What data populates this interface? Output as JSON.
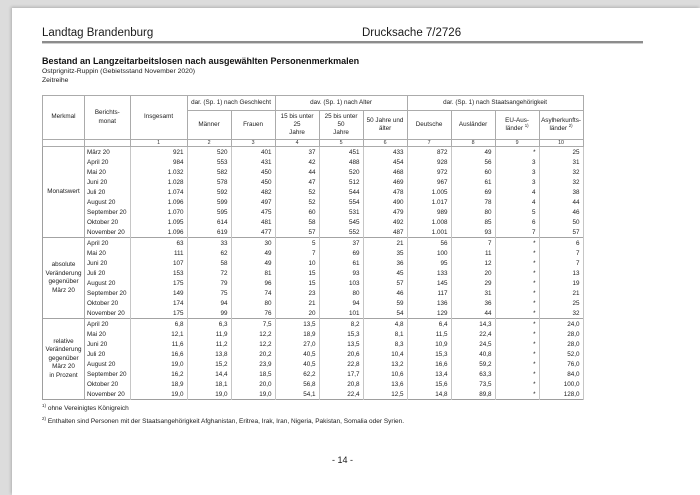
{
  "document": {
    "header": {
      "left": "Landtag Brandenburg",
      "right": "Drucksache 7/2726"
    },
    "title": "Bestand an Langzeitarbeitslosen nach ausgewählten Personenmerkmalen",
    "region_line": "Ostprignitz-Ruppin (Gebietsstand November 2020)",
    "series_line": "Zeitreihe",
    "footnotes": [
      {
        "marker": "1)",
        "text": "ohne Vereinigtes Königreich"
      },
      {
        "marker": "2)",
        "text": "Enthalten sind Personen mit der Staatsangehörigkeit Afghanistan, Eritrea, Irak, Iran, Nigeria, Pakistan, Somalia oder Syrien."
      }
    ],
    "page_number": "- 14 -"
  },
  "colors": {
    "canvas_bg": "#dcdcdc",
    "page_bg": "#ffffff",
    "table_border": "#ababab",
    "text": "#1a1a1a"
  },
  "table": {
    "corner": {
      "merkmal": "Merkmal",
      "berichtsmonat": "Berichts-\nmonat",
      "insgesamt": "Insgesamt"
    },
    "groups": [
      {
        "label": "dar. (Sp. 1) nach Geschlecht",
        "span": 2
      },
      {
        "label": "dav. (Sp. 1) nach Alter",
        "span": 3
      },
      {
        "label": "dar. (Sp. 1) nach Staatsangehörigkeit",
        "span": 4
      }
    ],
    "subheaders": [
      {
        "label": "Männer"
      },
      {
        "label": "Frauen"
      },
      {
        "label": "15 bis unter 25\nJahre"
      },
      {
        "label": "25 bis unter 50\nJahre"
      },
      {
        "label": "50 Jahre und\nälter"
      },
      {
        "label": "Deutsche"
      },
      {
        "label": "Ausländer"
      },
      {
        "label": "EU-Aus-\nländer ",
        "sup": "1)"
      },
      {
        "label": "Asylherkunfts-\nländer ",
        "sup": "2)"
      }
    ],
    "col_numbers": [
      "1",
      "2",
      "3",
      "4",
      "5",
      "6",
      "7",
      "8",
      "9",
      "10"
    ],
    "sections": [
      {
        "label": "Monatswert",
        "rows": [
          [
            "März 20",
            "921",
            "520",
            "401",
            "37",
            "451",
            "433",
            "872",
            "49",
            "*",
            "25"
          ],
          [
            "April 20",
            "984",
            "553",
            "431",
            "42",
            "488",
            "454",
            "928",
            "56",
            "3",
            "31"
          ],
          [
            "Mai 20",
            "1.032",
            "582",
            "450",
            "44",
            "520",
            "468",
            "972",
            "60",
            "3",
            "32"
          ],
          [
            "Juni 20",
            "1.028",
            "578",
            "450",
            "47",
            "512",
            "469",
            "967",
            "61",
            "3",
            "32"
          ],
          [
            "Juli 20",
            "1.074",
            "592",
            "482",
            "52",
            "544",
            "478",
            "1.005",
            "69",
            "4",
            "38"
          ],
          [
            "August 20",
            "1.096",
            "599",
            "497",
            "52",
            "554",
            "490",
            "1.017",
            "78",
            "4",
            "44"
          ],
          [
            "September 20",
            "1.070",
            "595",
            "475",
            "60",
            "531",
            "479",
            "989",
            "80",
            "5",
            "46"
          ],
          [
            "Oktober 20",
            "1.095",
            "614",
            "481",
            "58",
            "545",
            "492",
            "1.008",
            "85",
            "6",
            "50"
          ],
          [
            "November 20",
            "1.096",
            "619",
            "477",
            "57",
            "552",
            "487",
            "1.001",
            "93",
            "7",
            "57"
          ]
        ]
      },
      {
        "label": "absolute\nVeränderung\ngegenüber\nMärz 20",
        "rows": [
          [
            "April 20",
            "63",
            "33",
            "30",
            "5",
            "37",
            "21",
            "56",
            "7",
            "*",
            "6"
          ],
          [
            "Mai 20",
            "111",
            "62",
            "49",
            "7",
            "69",
            "35",
            "100",
            "11",
            "*",
            "7"
          ],
          [
            "Juni 20",
            "107",
            "58",
            "49",
            "10",
            "61",
            "36",
            "95",
            "12",
            "*",
            "7"
          ],
          [
            "Juli 20",
            "153",
            "72",
            "81",
            "15",
            "93",
            "45",
            "133",
            "20",
            "*",
            "13"
          ],
          [
            "August 20",
            "175",
            "79",
            "96",
            "15",
            "103",
            "57",
            "145",
            "29",
            "*",
            "19"
          ],
          [
            "September 20",
            "149",
            "75",
            "74",
            "23",
            "80",
            "46",
            "117",
            "31",
            "*",
            "21"
          ],
          [
            "Oktober 20",
            "174",
            "94",
            "80",
            "21",
            "94",
            "59",
            "136",
            "36",
            "*",
            "25"
          ],
          [
            "November 20",
            "175",
            "99",
            "76",
            "20",
            "101",
            "54",
            "129",
            "44",
            "*",
            "32"
          ]
        ]
      },
      {
        "label": "relative\nVeränderung\ngegenüber\nMärz 20\nin Prozent",
        "rows": [
          [
            "April 20",
            "6,8",
            "6,3",
            "7,5",
            "13,5",
            "8,2",
            "4,8",
            "6,4",
            "14,3",
            "*",
            "24,0"
          ],
          [
            "Mai 20",
            "12,1",
            "11,9",
            "12,2",
            "18,9",
            "15,3",
            "8,1",
            "11,5",
            "22,4",
            "*",
            "28,0"
          ],
          [
            "Juni 20",
            "11,6",
            "11,2",
            "12,2",
            "27,0",
            "13,5",
            "8,3",
            "10,9",
            "24,5",
            "*",
            "28,0"
          ],
          [
            "Juli 20",
            "16,6",
            "13,8",
            "20,2",
            "40,5",
            "20,6",
            "10,4",
            "15,3",
            "40,8",
            "*",
            "52,0"
          ],
          [
            "August 20",
            "19,0",
            "15,2",
            "23,9",
            "40,5",
            "22,8",
            "13,2",
            "16,6",
            "59,2",
            "*",
            "76,0"
          ],
          [
            "September 20",
            "16,2",
            "14,4",
            "18,5",
            "62,2",
            "17,7",
            "10,6",
            "13,4",
            "63,3",
            "*",
            "84,0"
          ],
          [
            "Oktober 20",
            "18,9",
            "18,1",
            "20,0",
            "56,8",
            "20,8",
            "13,6",
            "15,6",
            "73,5",
            "*",
            "100,0"
          ],
          [
            "November 20",
            "19,0",
            "19,0",
            "19,0",
            "54,1",
            "22,4",
            "12,5",
            "14,8",
            "89,8",
            "*",
            "128,0"
          ]
        ]
      }
    ]
  }
}
